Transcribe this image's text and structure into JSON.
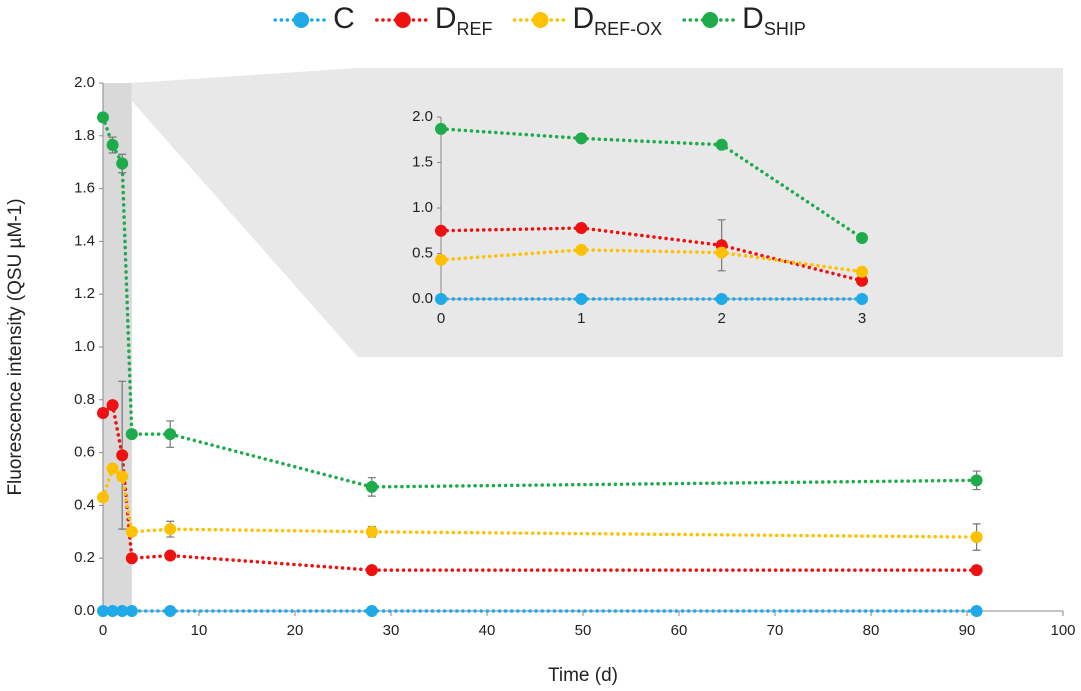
{
  "chart_data": [
    {
      "type": "line",
      "x_label": "Time (d)",
      "y_label": "Fluorescence intensity (QSU µM-1)",
      "legend": "top",
      "highlight_xlim": [
        0,
        3
      ],
      "x": [
        0,
        1,
        2,
        3,
        7,
        28,
        91
      ],
      "series": [
        {
          "name": "C",
          "color": "#1fa9e6",
          "values": [
            0,
            0,
            0,
            0,
            0,
            0,
            0
          ],
          "errors": [
            null,
            null,
            null,
            null,
            null,
            null,
            null
          ]
        },
        {
          "name": "D",
          "name_sub": "REF",
          "color": "#ee1111",
          "values": [
            0.75,
            0.78,
            0.59,
            0.2,
            0.21,
            0.155,
            0.155
          ],
          "errors": [
            null,
            null,
            0.28,
            null,
            null,
            null,
            null
          ]
        },
        {
          "name": "D",
          "name_sub": "REF-OX",
          "color": "#ffc000",
          "values": [
            0.43,
            0.54,
            0.51,
            0.3,
            0.31,
            0.3,
            0.28
          ],
          "errors": [
            null,
            null,
            null,
            null,
            0.03,
            0.02,
            0.05
          ]
        },
        {
          "name": "D",
          "name_sub": "SHIP",
          "color": "#1eab4b",
          "values": [
            1.87,
            1.765,
            1.695,
            0.67,
            0.67,
            0.47,
            0.495
          ],
          "errors": [
            null,
            0.03,
            0.035,
            null,
            0.05,
            0.035,
            0.035
          ]
        }
      ],
      "xlim": [
        0,
        100
      ],
      "xticks": [
        0,
        10,
        20,
        30,
        40,
        50,
        60,
        70,
        80,
        90,
        100
      ],
      "ylim": [
        0,
        2
      ],
      "yticks": [
        {
          "value": 0,
          "label": "0.0"
        },
        0.2,
        0.4,
        0.6,
        0.8,
        {
          "value": 1,
          "label": "1.0"
        },
        1.2,
        1.4,
        1.6,
        1.8,
        {
          "value": 2,
          "label": "2.0"
        }
      ]
    },
    {
      "type": "line",
      "x": [
        0,
        1,
        2,
        3
      ],
      "series": [
        {
          "color": "#1fa9e6",
          "values": [
            0,
            0,
            0,
            0
          ],
          "errors": [
            null,
            null,
            null,
            null
          ]
        },
        {
          "color": "#ee1111",
          "values": [
            0.75,
            0.78,
            0.59,
            0.2
          ],
          "errors": [
            null,
            null,
            0.28,
            null
          ]
        },
        {
          "color": "#ffc000",
          "values": [
            0.43,
            0.54,
            0.51,
            0.3
          ],
          "errors": [
            null,
            null,
            null,
            null
          ]
        },
        {
          "color": "#1eab4b",
          "values": [
            1.87,
            1.765,
            1.695,
            0.67
          ],
          "errors": [
            null,
            null,
            null,
            null
          ]
        }
      ],
      "xlim": [
        0,
        3
      ],
      "xticks": [
        0,
        1,
        2,
        3
      ],
      "ylim": [
        0,
        2
      ],
      "yticks": [
        {
          "value": 0,
          "label": "0.0"
        },
        0.5,
        {
          "value": 1,
          "label": "1.0"
        },
        1.5,
        {
          "value": 2,
          "label": "2.0"
        }
      ]
    }
  ]
}
